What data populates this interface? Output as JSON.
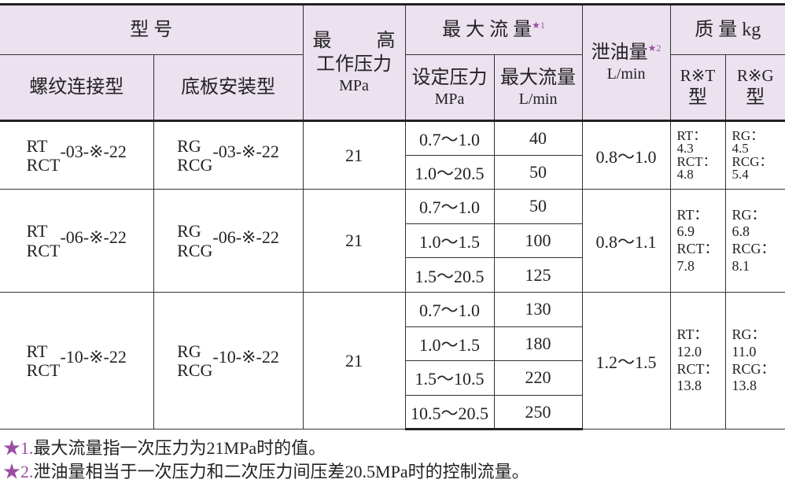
{
  "table": {
    "header": {
      "model": "型 号",
      "thread": "螺纹连接型",
      "plate": "底板安装型",
      "max_pressure": {
        "line1": [
          "最",
          "高"
        ],
        "line2": "工作压力",
        "unit": "MPa"
      },
      "max_flow": {
        "label": "最 大 流 量",
        "mark": "★1"
      },
      "set_pressure": {
        "label": "设定压力",
        "unit": "MPa"
      },
      "flow": {
        "label": "最大流量",
        "unit": "L/min"
      },
      "drain": {
        "label": "泄油量",
        "mark": "★2",
        "unit": "L/min"
      },
      "mass": "质 量 kg",
      "rt": {
        "label": "R※T",
        "suffix": "型"
      },
      "rg": {
        "label": "R※G",
        "suffix": "型"
      }
    },
    "groups": [
      {
        "thread": {
          "prefixes": [
            "RT",
            "RCT"
          ],
          "suffix": "-03-※-22"
        },
        "plate": {
          "prefixes": [
            "RG",
            "RCG"
          ],
          "suffix": "-03-※-22"
        },
        "pressure": 21,
        "rows": [
          {
            "set": "0.7～1.0",
            "flow": 40
          },
          {
            "set": "1.0～20.5",
            "flow": 50
          }
        ],
        "drain": "0.8～1.0",
        "rt_mass": [
          "RT：",
          "4.3",
          "RCT：",
          "4.8"
        ],
        "rg_mass": [
          "RG：",
          "4.5",
          "RCG：",
          "5.4"
        ]
      },
      {
        "thread": {
          "prefixes": [
            "RT",
            "RCT"
          ],
          "suffix": "-06-※-22"
        },
        "plate": {
          "prefixes": [
            "RG",
            "RCG"
          ],
          "suffix": "-06-※-22"
        },
        "pressure": 21,
        "rows": [
          {
            "set": "0.7～1.0",
            "flow": 50
          },
          {
            "set": "1.0～1.5",
            "flow": 100
          },
          {
            "set": "1.5～20.5",
            "flow": 125
          }
        ],
        "drain": "0.8～1.1",
        "rt_mass": [
          "RT：",
          "6.9",
          "RCT：",
          "7.8"
        ],
        "rg_mass": [
          "RG：",
          "6.8",
          "RCG：",
          "8.1"
        ]
      },
      {
        "thread": {
          "prefixes": [
            "RT",
            "RCT"
          ],
          "suffix": "-10-※-22"
        },
        "plate": {
          "prefixes": [
            "RG",
            "RCG"
          ],
          "suffix": "-10-※-22"
        },
        "pressure": 21,
        "rows": [
          {
            "set": "0.7～1.0",
            "flow": 130
          },
          {
            "set": "1.0～1.5",
            "flow": 180
          },
          {
            "set": "1.5～10.5",
            "flow": 220
          },
          {
            "set": "10.5～20.5",
            "flow": 250
          }
        ],
        "drain": "1.2～1.5",
        "rt_mass": [
          "RT：",
          "12.0",
          "RCT：",
          "13.8"
        ],
        "rg_mass": [
          "RG：",
          "11.0",
          "RCG：",
          "13.8"
        ]
      }
    ]
  },
  "footnotes": [
    {
      "mark": "★1.",
      "text": "最大流量指一次压力为21MPa时的值。"
    },
    {
      "mark": "★2.",
      "text": "泄油量相当于一次压力和二次压力间压差20.5MPa时的控制流量。"
    }
  ]
}
